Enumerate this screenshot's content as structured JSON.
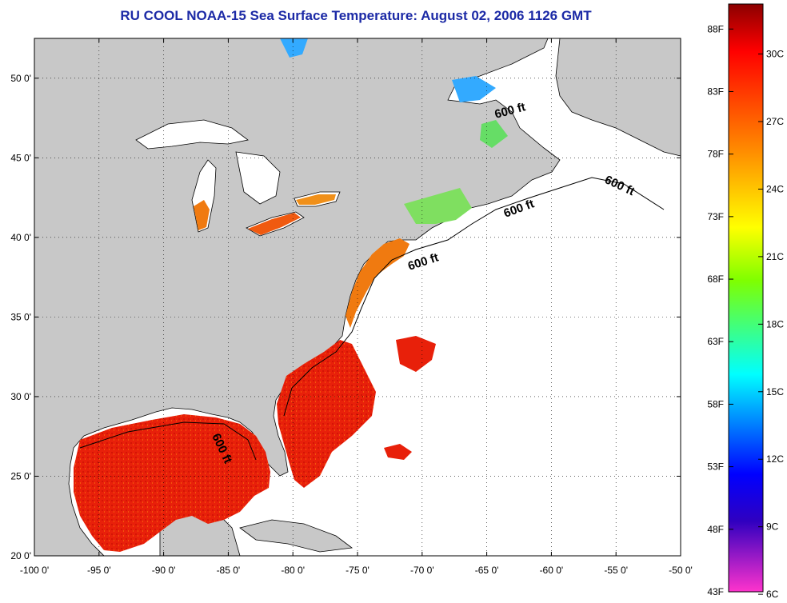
{
  "title": "RU COOL  NOAA-15  Sea Surface Temperature:  August 02, 2006 1126 GMT",
  "axes": {
    "x_ticks": [
      "-100 0'",
      "-95 0'",
      "-90 0'",
      "-85 0'",
      "-80 0'",
      "-75 0'",
      "-70 0'",
      "-65 0'",
      "-60 0'",
      "-55 0'",
      "-50 0'"
    ],
    "y_ticks": [
      "50 0'",
      "45 0'",
      "40 0'",
      "35 0'",
      "30 0'",
      "25 0'",
      "20 0'"
    ],
    "lon_range": [
      -100,
      -50
    ],
    "lat_range": [
      20,
      52.5
    ],
    "grid": true
  },
  "contour_labels": [
    "600 ft",
    "600 ft",
    "600 ft",
    "600 ft",
    "600 ft"
  ],
  "colorbar": {
    "fahrenheit": [
      "88F",
      "83F",
      "78F",
      "73F",
      "68F",
      "63F",
      "58F",
      "53F",
      "48F",
      "43F"
    ],
    "celsius": [
      "30C",
      "27C",
      "24C",
      "21C",
      "18C",
      "15C",
      "12C",
      "9C",
      "6C"
    ],
    "colors": [
      "#8b0000",
      "#ff0000",
      "#ff8c00",
      "#ffff00",
      "#7fff00",
      "#00ffff",
      "#0000ff",
      "#ff33cc"
    ]
  },
  "colors": {
    "land": "#c8c8c8",
    "ocean_no_data": "#ffffff",
    "title": "#1c2aa6",
    "sst_warm": "#e8200a",
    "sst_mid": "#f07a10",
    "sst_cool": "#33aaff"
  }
}
